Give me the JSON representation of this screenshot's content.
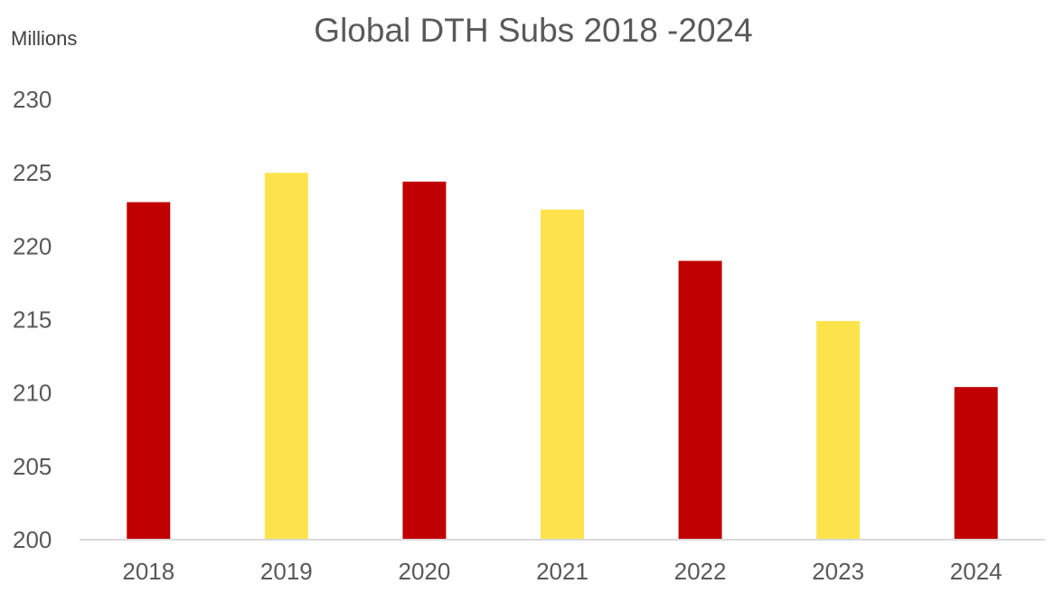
{
  "chart_data": {
    "type": "bar",
    "title": "Global DTH Subs 2018 -2024",
    "unit_label": "Millions",
    "xlabel": "",
    "ylabel": "",
    "categories": [
      "2018",
      "2019",
      "2020",
      "2021",
      "2022",
      "2023",
      "2024"
    ],
    "values": [
      223.0,
      225.0,
      224.4,
      222.5,
      219.0,
      214.9,
      210.4
    ],
    "bar_colors": [
      "#C00000",
      "#FFE34D",
      "#C00000",
      "#FFE34D",
      "#C00000",
      "#FFE34D",
      "#C00000"
    ],
    "ylim": [
      200,
      230
    ],
    "yticks": [
      "200",
      "205",
      "210",
      "215",
      "220",
      "225",
      "230"
    ],
    "grid": false,
    "legend": "none"
  }
}
